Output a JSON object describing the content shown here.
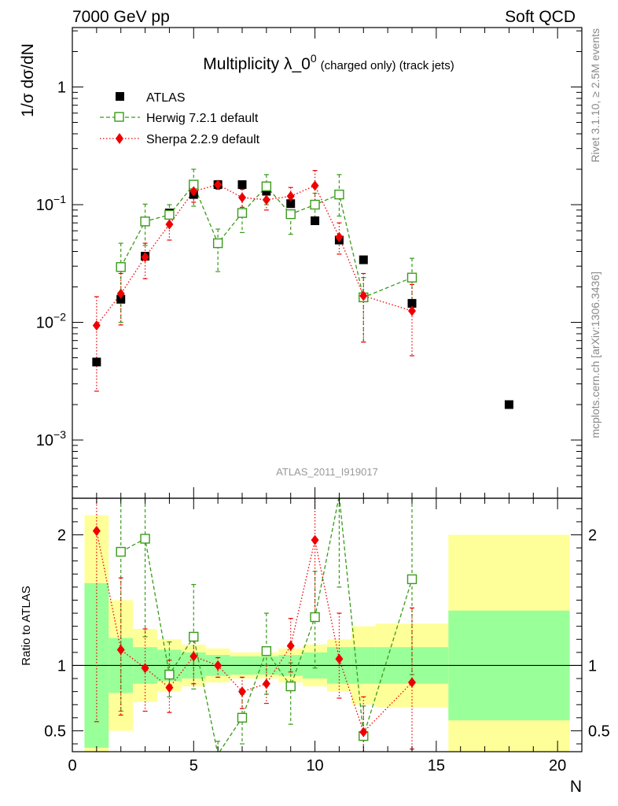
{
  "header": {
    "left": "7000 GeV pp",
    "right": "Soft QCD"
  },
  "side_labels": {
    "top": "Rivet 3.1.10, ≥ 2.5M events",
    "bottom": "mcplots.cern.ch [arXiv:1306.3436]"
  },
  "watermark": "ATLAS_2011_I919017",
  "colors": {
    "atlas": "#000000",
    "herwig": "#3a9a1a",
    "sherpa": "#ee0000",
    "band_inner": "#99ff99",
    "band_outer": "#ffff99"
  },
  "chart_data": [
    {
      "type": "scatter",
      "panel": "main",
      "title": "Multiplicity λ_0",
      "title_sup": "0",
      "title_suffix": "(charged only) (track jets)",
      "ylabel": "1/σ dσ/dN",
      "yscale": "log",
      "xlim": [
        0,
        21
      ],
      "ylim": [
        0.00032,
        3.2
      ],
      "y_ticks": [
        0.001,
        0.01,
        0.1,
        1
      ],
      "y_tick_labels": [
        {
          "base": "10",
          "exp": "−3"
        },
        {
          "base": "10",
          "exp": "−2"
        },
        {
          "base": "10",
          "exp": "−1"
        },
        {
          "base": "1",
          "exp": ""
        }
      ],
      "legend_position": "top-left",
      "series": [
        {
          "name": "ATLAS",
          "marker": "filled-square",
          "x": [
            1,
            2,
            3,
            4,
            5,
            6,
            7,
            8,
            9,
            10,
            11,
            12,
            14,
            18
          ],
          "y": [
            0.0046,
            0.0157,
            0.0365,
            0.085,
            0.122,
            0.148,
            0.148,
            0.13,
            0.102,
            0.073,
            0.05,
            0.034,
            0.0145,
            0.002
          ]
        },
        {
          "name": "Herwig 7.2.1 default",
          "marker": "open-square",
          "line": "dashed",
          "x": [
            2,
            3,
            4,
            5,
            6,
            7,
            8,
            9,
            10,
            11,
            12,
            14
          ],
          "y": [
            0.0295,
            0.072,
            0.082,
            0.148,
            0.047,
            0.085,
            0.143,
            0.083,
            0.1,
            0.122,
            0.0163,
            0.024
          ],
          "err_up": [
            0.047,
            0.101,
            0.1,
            0.2,
            0.062,
            0.111,
            0.18,
            0.1,
            0.125,
            0.18,
            0.024,
            0.035
          ],
          "err_down": [
            0.01,
            0.045,
            0.065,
            0.097,
            0.027,
            0.058,
            0.1,
            0.056,
            0.072,
            0.08,
            0.0068,
            0.0135
          ]
        },
        {
          "name": "Sherpa 2.2.9 default",
          "marker": "filled-diamond",
          "line": "dotted",
          "x": [
            1,
            2,
            3,
            4,
            5,
            6,
            7,
            8,
            9,
            10,
            11,
            12,
            14
          ],
          "y": [
            0.0094,
            0.0175,
            0.0358,
            0.068,
            0.13,
            0.148,
            0.115,
            0.11,
            0.118,
            0.145,
            0.053,
            0.0168,
            0.0125
          ],
          "err_up": [
            0.0165,
            0.026,
            0.047,
            0.088,
            0.15,
            0.16,
            0.135,
            0.13,
            0.14,
            0.195,
            0.07,
            0.026,
            0.021
          ],
          "err_down": [
            0.0026,
            0.0095,
            0.0235,
            0.05,
            0.105,
            0.135,
            0.095,
            0.09,
            0.095,
            0.102,
            0.038,
            0.0068,
            0.0052
          ]
        }
      ]
    },
    {
      "type": "scatter",
      "panel": "ratio",
      "ylabel": "Ratio to ATLAS",
      "xlabel": "N",
      "xlim": [
        0,
        21
      ],
      "ylim": [
        0.34,
        2.28
      ],
      "x_ticks": [
        0,
        5,
        10,
        15,
        20
      ],
      "y_ticks": [
        0.5,
        1,
        2
      ],
      "reference_line": 1,
      "bands": {
        "edges": [
          0.5,
          1.5,
          2.5,
          3.5,
          4.5,
          5.5,
          6.5,
          7.5,
          8.5,
          9.5,
          10.5,
          11.5,
          12.5,
          15.5,
          20.5
        ],
        "inner_low": [
          0.37,
          0.79,
          0.86,
          0.88,
          0.9,
          0.92,
          0.93,
          0.93,
          0.92,
          0.9,
          0.86,
          0.86,
          0.86,
          0.58
        ],
        "inner_high": [
          1.63,
          1.21,
          1.14,
          1.12,
          1.1,
          1.08,
          1.07,
          1.07,
          1.08,
          1.1,
          1.14,
          1.14,
          1.14,
          1.42
        ],
        "outer_low": [
          0.33,
          0.5,
          0.72,
          0.8,
          0.84,
          0.87,
          0.9,
          0.9,
          0.87,
          0.84,
          0.8,
          0.7,
          0.68,
          0.33
        ],
        "outer_high": [
          2.15,
          1.5,
          1.28,
          1.2,
          1.16,
          1.13,
          1.1,
          1.1,
          1.13,
          1.16,
          1.2,
          1.3,
          1.32,
          2.0
        ]
      },
      "series": [
        {
          "name": "Herwig 7.2.1 default",
          "x": [
            2,
            3,
            4,
            5,
            6,
            7,
            8,
            9,
            10,
            11,
            12,
            14
          ],
          "y": [
            1.87,
            1.97,
            0.93,
            1.22,
            0.32,
            0.6,
            1.11,
            0.84,
            1.37,
            2.3,
            0.46,
            1.66
          ],
          "err_up": [
            2.8,
            2.75,
            1.18,
            1.62,
            0.42,
            0.78,
            1.4,
            1.02,
            1.72,
            3.2,
            0.69,
            2.3
          ],
          "err_down": [
            0.65,
            1.22,
            0.76,
            0.82,
            0.18,
            0.4,
            0.78,
            0.55,
            0.98,
            1.6,
            0.3,
            0.93
          ]
        },
        {
          "name": "Sherpa 2.2.9 default",
          "x": [
            1,
            2,
            3,
            4,
            5,
            6,
            7,
            8,
            9,
            10,
            11,
            12,
            14
          ],
          "y": [
            2.03,
            1.12,
            0.98,
            0.83,
            1.07,
            1.0,
            0.8,
            0.86,
            1.15,
            1.96,
            1.05,
            0.49,
            0.87
          ],
          "err_up": [
            3.6,
            1.67,
            1.28,
            1.04,
            1.23,
            1.06,
            0.91,
            1.0,
            1.36,
            2.66,
            1.4,
            0.76,
            1.44
          ],
          "err_down": [
            0.57,
            0.62,
            0.65,
            0.64,
            0.86,
            0.91,
            0.67,
            0.71,
            0.95,
            1.38,
            0.75,
            0.2,
            0.36
          ]
        }
      ]
    }
  ]
}
